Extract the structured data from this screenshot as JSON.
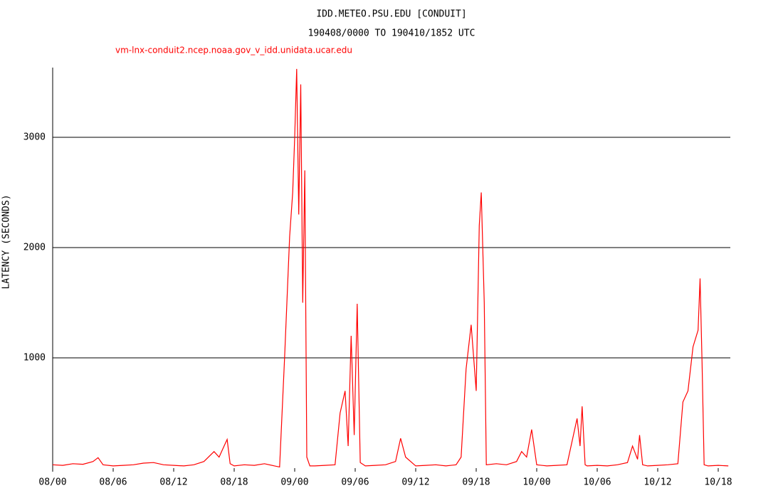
{
  "chart_data": {
    "type": "line",
    "title": "IDD.METEO.PSU.EDU [CONDUIT]",
    "subtitle": "190408/0000 TO 190410/1852 UTC",
    "source": "vm-lnx-conduit2.ncep.noaa.gov_v_idd.unidata.ucar.edu",
    "y_label": "LATENCY (SECONDS)",
    "xlim": [
      0,
      67.2
    ],
    "ylim": [
      0,
      3632
    ],
    "xticks": [
      {
        "value": 0,
        "label": "08/00"
      },
      {
        "value": 6,
        "label": "08/06"
      },
      {
        "value": 12,
        "label": "08/12"
      },
      {
        "value": 18,
        "label": "08/18"
      },
      {
        "value": 24,
        "label": "09/00"
      },
      {
        "value": 30,
        "label": "09/06"
      },
      {
        "value": 36,
        "label": "09/12"
      },
      {
        "value": 42,
        "label": "09/18"
      },
      {
        "value": 48,
        "label": "10/00"
      },
      {
        "value": 54,
        "label": "10/06"
      },
      {
        "value": 60,
        "label": "10/12"
      },
      {
        "value": 66,
        "label": "10/18"
      }
    ],
    "yticks": [
      1000,
      2000,
      3000
    ],
    "grid": true,
    "x": [
      0,
      1,
      2,
      3,
      4,
      4.5,
      5,
      6,
      7,
      8,
      9,
      10,
      11,
      12,
      13,
      14,
      15,
      16,
      16.5,
      17,
      17.3,
      17.6,
      18,
      19,
      20,
      21,
      22,
      22.5,
      23,
      23.5,
      23.8,
      24,
      24.2,
      24.4,
      24.6,
      24.8,
      25,
      25.2,
      25.5,
      26,
      27,
      28,
      28.5,
      29,
      29.3,
      29.6,
      29.9,
      30.2,
      30.5,
      31,
      32,
      33,
      34,
      34.5,
      35,
      36,
      37,
      38,
      39,
      40,
      40.5,
      41,
      41.5,
      42,
      42.3,
      42.5,
      42.8,
      43,
      44,
      45,
      46,
      46.5,
      47,
      47.5,
      48,
      49,
      50,
      51,
      52,
      52.3,
      52.5,
      52.8,
      53,
      54,
      55,
      56,
      57,
      57.5,
      58,
      58.2,
      58.5,
      59,
      60,
      61,
      62,
      62.5,
      63,
      63.5,
      64,
      64.2,
      64.4,
      64.6,
      65,
      66,
      67
    ],
    "series": [
      {
        "color": "#ff0000",
        "values": [
          30,
          25,
          40,
          35,
          60,
          95,
          30,
          20,
          25,
          30,
          45,
          50,
          30,
          25,
          20,
          30,
          60,
          150,
          100,
          200,
          260,
          40,
          20,
          30,
          25,
          40,
          20,
          10,
          1000,
          2100,
          2500,
          3000,
          3620,
          2300,
          3480,
          1500,
          2700,
          100,
          20,
          20,
          25,
          30,
          500,
          700,
          200,
          1200,
          300,
          1490,
          50,
          20,
          25,
          30,
          60,
          270,
          100,
          20,
          25,
          30,
          20,
          30,
          100,
          900,
          1300,
          700,
          2200,
          2500,
          1500,
          30,
          40,
          30,
          60,
          150,
          100,
          350,
          30,
          20,
          25,
          30,
          450,
          200,
          560,
          30,
          20,
          25,
          20,
          30,
          50,
          200,
          80,
          300,
          30,
          20,
          25,
          30,
          40,
          600,
          700,
          1100,
          1250,
          1720,
          950,
          30,
          20,
          25,
          20
        ]
      }
    ]
  }
}
